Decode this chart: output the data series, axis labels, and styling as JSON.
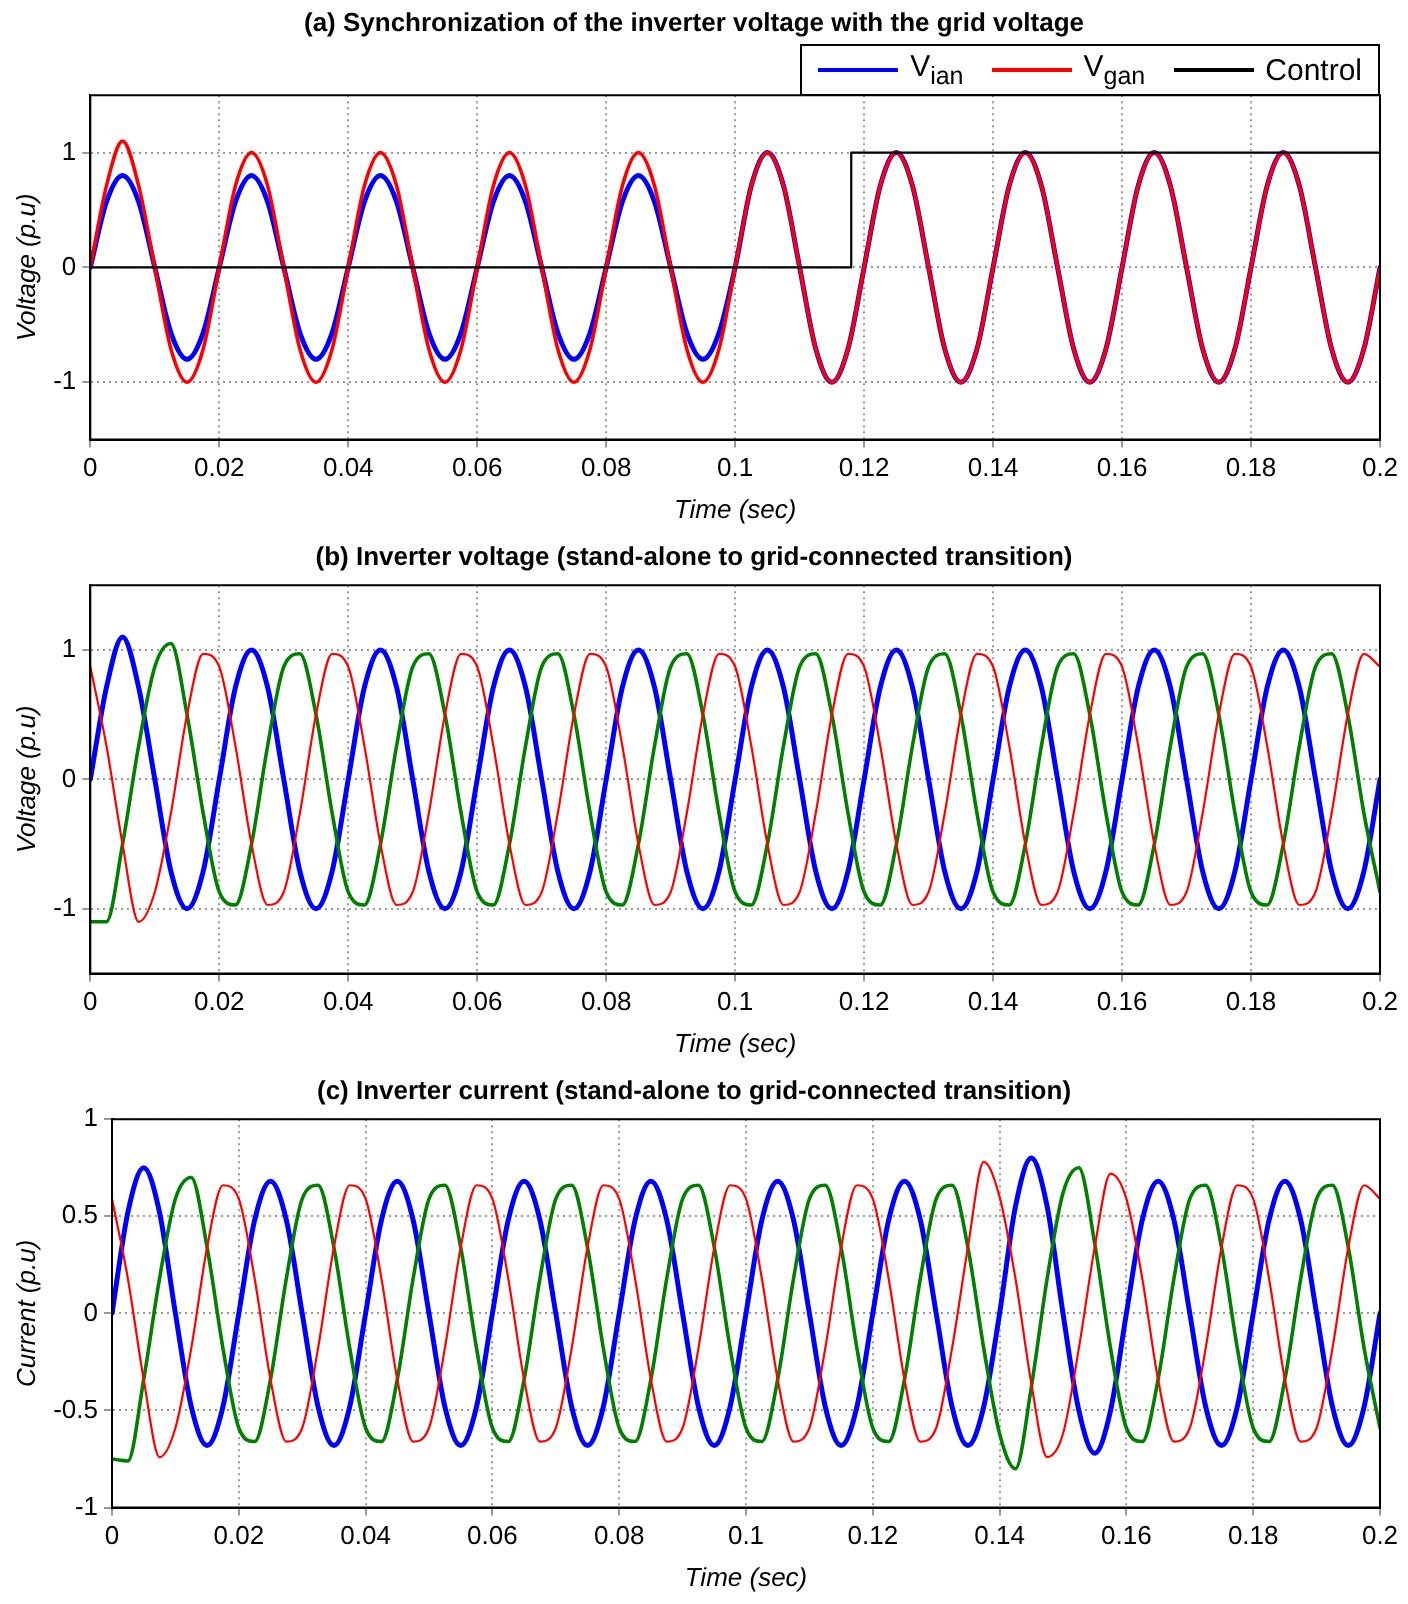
{
  "chart_data": [
    {
      "type": "line",
      "title": "(a) Synchronization of the inverter voltage with the grid voltage",
      "xlabel": "Time (sec)",
      "ylabel": "Voltage (p.u)",
      "xlim": [
        0,
        0.2
      ],
      "xticks": [
        0,
        0.02,
        0.04,
        0.06,
        0.08,
        0.1,
        0.12,
        0.14,
        0.16,
        0.18,
        0.2
      ],
      "ylim": [
        -1.5,
        1.5
      ],
      "yticks": [
        -1,
        0,
        1
      ],
      "grid": true,
      "legend": "top right",
      "x": [
        0,
        0.0025,
        0.005,
        0.0075,
        0.01,
        0.0125,
        0.015,
        0.0175,
        0.02,
        0.0225,
        0.025,
        0.0275,
        0.03,
        0.0325,
        0.035,
        0.0375,
        0.04,
        0.0425,
        0.045,
        0.0475,
        0.05,
        0.0525,
        0.055,
        0.0575,
        0.06,
        0.0625,
        0.065,
        0.0675,
        0.07,
        0.0725,
        0.075,
        0.0775,
        0.08,
        0.0825,
        0.085,
        0.0875,
        0.09,
        0.0925,
        0.095,
        0.0975,
        0.1,
        0.1025,
        0.105,
        0.1075,
        0.11,
        0.1125,
        0.115,
        0.1175,
        0.12,
        0.1225,
        0.125,
        0.1275,
        0.13,
        0.1325,
        0.135,
        0.1375,
        0.14,
        0.1425,
        0.145,
        0.1475,
        0.15,
        0.1525,
        0.155,
        0.1575,
        0.16,
        0.1625,
        0.165,
        0.1675,
        0.17,
        0.1725,
        0.175,
        0.1775,
        0.18,
        0.1825,
        0.185,
        0.1875,
        0.19,
        0.1925,
        0.195,
        0.1975,
        0.2
      ],
      "series": [
        {
          "name": "V$_{ian}$",
          "color": "#0000ff",
          "values": [
            0,
            0.57,
            0.8,
            0.57,
            0,
            -0.57,
            -0.8,
            -0.57,
            0,
            0.57,
            0.8,
            0.57,
            0,
            -0.57,
            -0.8,
            -0.57,
            0,
            0.57,
            0.8,
            0.57,
            0,
            -0.57,
            -0.8,
            -0.57,
            0,
            0.57,
            0.8,
            0.57,
            0,
            -0.57,
            -0.8,
            -0.57,
            0,
            0.57,
            0.8,
            0.57,
            0,
            -0.57,
            -0.8,
            -0.57,
            0,
            0.71,
            1,
            0.71,
            0,
            -0.71,
            -1,
            -0.71,
            0,
            0.71,
            1,
            0.71,
            0,
            -0.71,
            -1,
            -0.71,
            0,
            0.71,
            1,
            0.71,
            0,
            -0.71,
            -1,
            -0.71,
            0,
            0.71,
            1,
            0.71,
            0,
            -0.71,
            -1,
            -0.71,
            0,
            0.71,
            1,
            0.71,
            0,
            -0.71,
            -1,
            -0.71,
            0
          ]
        },
        {
          "name": "V$_{gan}$",
          "color": "#ff0000",
          "values": [
            0,
            0.71,
            1.1,
            0.71,
            0,
            -0.71,
            -1,
            -0.71,
            0,
            0.71,
            1,
            0.71,
            0,
            -0.71,
            -1,
            -0.71,
            0,
            0.71,
            1,
            0.71,
            0,
            -0.71,
            -1,
            -0.71,
            0,
            0.71,
            1,
            0.71,
            0,
            -0.71,
            -1,
            -0.71,
            0,
            0.71,
            1,
            0.71,
            0,
            -0.71,
            -1,
            -0.71,
            0,
            0.71,
            1,
            0.71,
            0,
            -0.71,
            -1,
            -0.71,
            0,
            0.71,
            1,
            0.71,
            0,
            -0.71,
            -1,
            -0.71,
            0,
            0.71,
            1,
            0.71,
            0,
            -0.71,
            -1,
            -0.71,
            0,
            0.71,
            1,
            0.71,
            0,
            -0.71,
            -1,
            -0.71,
            0,
            0.71,
            1,
            0.71,
            0,
            -0.71,
            -1,
            -0.71,
            0
          ]
        },
        {
          "name": "Control",
          "type": "step",
          "color": "#000000",
          "x": [
            0,
            0.118,
            0.2
          ],
          "values": [
            0,
            1,
            1
          ]
        }
      ]
    },
    {
      "type": "line",
      "title": "(b) Inverter voltage (stand-alone to grid-connected transition)",
      "xlabel": "Time (sec)",
      "ylabel": "Voltage (p.u)",
      "xlim": [
        0,
        0.2
      ],
      "xticks": [
        0,
        0.02,
        0.04,
        0.06,
        0.08,
        0.1,
        0.12,
        0.14,
        0.16,
        0.18,
        0.2
      ],
      "ylim": [
        -1.5,
        1.5
      ],
      "yticks": [
        -1,
        0,
        1
      ],
      "grid": true,
      "x": [
        0,
        0.0025,
        0.005,
        0.0075,
        0.01,
        0.0125,
        0.015,
        0.0175,
        0.02,
        0.0225,
        0.025,
        0.0275,
        0.03,
        0.0325,
        0.035,
        0.0375,
        0.04,
        0.0425,
        0.045,
        0.0475,
        0.05,
        0.0525,
        0.055,
        0.0575,
        0.06,
        0.0625,
        0.065,
        0.0675,
        0.07,
        0.0725,
        0.075,
        0.0775,
        0.08,
        0.0825,
        0.085,
        0.0875,
        0.09,
        0.0925,
        0.095,
        0.0975,
        0.1,
        0.1025,
        0.105,
        0.1075,
        0.11,
        0.1125,
        0.115,
        0.1175,
        0.12,
        0.1225,
        0.125,
        0.1275,
        0.13,
        0.1325,
        0.135,
        0.1375,
        0.14,
        0.1425,
        0.145,
        0.1475,
        0.15,
        0.1525,
        0.155,
        0.1575,
        0.16,
        0.1625,
        0.165,
        0.1675,
        0.17,
        0.1725,
        0.175,
        0.1775,
        0.18,
        0.1825,
        0.185,
        0.1875,
        0.19,
        0.1925,
        0.195,
        0.1975,
        0.2
      ],
      "series": [
        {
          "color": "#0000ff",
          "values": [
            0,
            0.71,
            1.1,
            0.71,
            0,
            -0.71,
            -1,
            -0.71,
            0,
            0.71,
            1,
            0.71,
            0,
            -0.71,
            -1,
            -0.71,
            0,
            0.71,
            1,
            0.71,
            0,
            -0.71,
            -1,
            -0.71,
            0,
            0.71,
            1,
            0.71,
            0,
            -0.71,
            -1,
            -0.71,
            0,
            0.71,
            1,
            0.71,
            0,
            -0.71,
            -1,
            -0.71,
            0,
            0.71,
            1,
            0.71,
            0,
            -0.71,
            -1,
            -0.71,
            0,
            0.71,
            1,
            0.71,
            0,
            -0.71,
            -1,
            -0.71,
            0,
            0.71,
            1,
            0.71,
            0,
            -0.71,
            -1,
            -0.71,
            0,
            0.71,
            1,
            0.71,
            0,
            -0.71,
            -1,
            -0.71,
            0,
            0.71,
            1,
            0.71,
            0,
            -0.71,
            -1,
            -0.71,
            0
          ]
        },
        {
          "color": "#008000",
          "values": [
            -1.1,
            -1.1,
            -0.5,
            0.26,
            0.87,
            1.05,
            0.5,
            -0.26,
            -0.87,
            -0.97,
            -0.5,
            0.26,
            0.87,
            0.97,
            0.5,
            -0.26,
            -0.87,
            -0.97,
            -0.5,
            0.26,
            0.87,
            0.97,
            0.5,
            -0.26,
            -0.87,
            -0.97,
            -0.5,
            0.26,
            0.87,
            0.97,
            0.5,
            -0.26,
            -0.87,
            -0.97,
            -0.5,
            0.26,
            0.87,
            0.97,
            0.5,
            -0.26,
            -0.87,
            -0.97,
            -0.5,
            0.26,
            0.87,
            0.97,
            0.5,
            -0.26,
            -0.87,
            -0.97,
            -0.5,
            0.26,
            0.87,
            0.97,
            0.5,
            -0.26,
            -0.87,
            -0.97,
            -0.5,
            0.26,
            0.87,
            0.97,
            0.5,
            -0.26,
            -0.87,
            -0.97,
            -0.5,
            0.26,
            0.87,
            0.97,
            0.5,
            -0.26,
            -0.87,
            -0.97,
            -0.5,
            0.26,
            0.87,
            0.97,
            0.5,
            -0.26,
            -0.87
          ]
        },
        {
          "color": "#ff0000",
          "values": [
            0.87,
            0.26,
            -0.5,
            -1.1,
            -0.87,
            -0.26,
            0.5,
            0.97,
            0.87,
            0.26,
            -0.5,
            -0.97,
            -0.87,
            -0.26,
            0.5,
            0.97,
            0.87,
            0.26,
            -0.5,
            -0.97,
            -0.87,
            -0.26,
            0.5,
            0.97,
            0.87,
            0.26,
            -0.5,
            -0.97,
            -0.87,
            -0.26,
            0.5,
            0.97,
            0.87,
            0.26,
            -0.5,
            -0.97,
            -0.87,
            -0.26,
            0.5,
            0.97,
            0.87,
            0.26,
            -0.5,
            -0.97,
            -0.87,
            -0.26,
            0.5,
            0.97,
            0.87,
            0.26,
            -0.5,
            -0.97,
            -0.87,
            -0.26,
            0.5,
            0.97,
            0.87,
            0.26,
            -0.5,
            -0.97,
            -0.87,
            -0.26,
            0.5,
            0.97,
            0.87,
            0.26,
            -0.5,
            -0.97,
            -0.87,
            -0.26,
            0.5,
            0.97,
            0.87,
            0.26,
            -0.5,
            -0.97,
            -0.87,
            -0.26,
            0.5,
            0.97,
            0.87
          ]
        }
      ]
    },
    {
      "type": "line",
      "title": "(c) Inverter current (stand-alone to grid-connected transition)",
      "xlabel": "Time (sec)",
      "ylabel": "Current (p.u)",
      "xlim": [
        0,
        0.2
      ],
      "xticks": [
        0,
        0.02,
        0.04,
        0.06,
        0.08,
        0.1,
        0.12,
        0.14,
        0.16,
        0.18,
        0.2
      ],
      "ylim": [
        -1,
        1
      ],
      "yticks": [
        -1,
        -0.5,
        0,
        0.5,
        1
      ],
      "grid": true,
      "x": [
        0,
        0.0025,
        0.005,
        0.0075,
        0.01,
        0.0125,
        0.015,
        0.0175,
        0.02,
        0.0225,
        0.025,
        0.0275,
        0.03,
        0.0325,
        0.035,
        0.0375,
        0.04,
        0.0425,
        0.045,
        0.0475,
        0.05,
        0.0525,
        0.055,
        0.0575,
        0.06,
        0.0625,
        0.065,
        0.0675,
        0.07,
        0.0725,
        0.075,
        0.0775,
        0.08,
        0.0825,
        0.085,
        0.0875,
        0.09,
        0.0925,
        0.095,
        0.0975,
        0.1,
        0.1025,
        0.105,
        0.1075,
        0.11,
        0.1125,
        0.115,
        0.1175,
        0.12,
        0.1225,
        0.125,
        0.1275,
        0.13,
        0.1325,
        0.135,
        0.1375,
        0.14,
        0.1425,
        0.145,
        0.1475,
        0.15,
        0.1525,
        0.155,
        0.1575,
        0.16,
        0.1625,
        0.165,
        0.1675,
        0.17,
        0.1725,
        0.175,
        0.1775,
        0.18,
        0.1825,
        0.185,
        0.1875,
        0.19,
        0.1925,
        0.195,
        0.1975,
        0.2
      ],
      "series": [
        {
          "color": "#0000ff",
          "values": [
            0,
            0.52,
            0.75,
            0.52,
            0,
            -0.48,
            -0.68,
            -0.48,
            0,
            0.48,
            0.68,
            0.48,
            0,
            -0.48,
            -0.68,
            -0.48,
            0,
            0.48,
            0.68,
            0.48,
            0,
            -0.48,
            -0.68,
            -0.48,
            0,
            0.48,
            0.68,
            0.48,
            0,
            -0.48,
            -0.68,
            -0.48,
            0,
            0.48,
            0.68,
            0.48,
            0,
            -0.48,
            -0.68,
            -0.48,
            0,
            0.48,
            0.68,
            0.48,
            0,
            -0.48,
            -0.68,
            -0.48,
            0,
            0.48,
            0.68,
            0.48,
            0,
            -0.48,
            -0.68,
            -0.48,
            0,
            0.55,
            0.8,
            0.55,
            0,
            -0.5,
            -0.72,
            -0.5,
            0,
            0.48,
            0.68,
            0.48,
            0,
            -0.48,
            -0.68,
            -0.48,
            0,
            0.48,
            0.68,
            0.48,
            0,
            -0.48,
            -0.68,
            -0.48,
            0
          ]
        },
        {
          "color": "#008000",
          "values": [
            -0.75,
            -0.76,
            -0.34,
            0.18,
            0.59,
            0.7,
            0.34,
            -0.18,
            -0.59,
            -0.66,
            -0.34,
            0.18,
            0.59,
            0.66,
            0.34,
            -0.18,
            -0.59,
            -0.66,
            -0.34,
            0.18,
            0.59,
            0.66,
            0.34,
            -0.18,
            -0.59,
            -0.66,
            -0.34,
            0.18,
            0.59,
            0.66,
            0.34,
            -0.18,
            -0.59,
            -0.66,
            -0.34,
            0.18,
            0.59,
            0.66,
            0.34,
            -0.18,
            -0.59,
            -0.66,
            -0.34,
            0.18,
            0.59,
            0.66,
            0.34,
            -0.18,
            -0.59,
            -0.66,
            -0.34,
            0.18,
            0.59,
            0.66,
            0.34,
            -0.18,
            -0.62,
            -0.8,
            -0.38,
            0.18,
            0.62,
            0.75,
            0.36,
            -0.18,
            -0.59,
            -0.66,
            -0.34,
            0.18,
            0.59,
            0.66,
            0.34,
            -0.18,
            -0.59,
            -0.66,
            -0.34,
            0.18,
            0.59,
            0.66,
            0.34,
            -0.18,
            -0.59
          ]
        },
        {
          "color": "#ff0000",
          "values": [
            0.59,
            0.18,
            -0.34,
            -0.74,
            -0.59,
            -0.18,
            0.34,
            0.66,
            0.59,
            0.18,
            -0.34,
            -0.66,
            -0.59,
            -0.18,
            0.34,
            0.66,
            0.59,
            0.18,
            -0.34,
            -0.66,
            -0.59,
            -0.18,
            0.34,
            0.66,
            0.59,
            0.18,
            -0.34,
            -0.66,
            -0.59,
            -0.18,
            0.34,
            0.66,
            0.59,
            0.18,
            -0.34,
            -0.66,
            -0.59,
            -0.18,
            0.34,
            0.66,
            0.59,
            0.18,
            -0.34,
            -0.66,
            -0.59,
            -0.18,
            0.34,
            0.66,
            0.59,
            0.18,
            -0.34,
            -0.66,
            -0.59,
            -0.18,
            0.34,
            0.78,
            0.6,
            0.18,
            -0.36,
            -0.74,
            -0.62,
            -0.18,
            0.34,
            0.72,
            0.59,
            0.18,
            -0.34,
            -0.66,
            -0.59,
            -0.18,
            0.34,
            0.66,
            0.59,
            0.18,
            -0.34,
            -0.66,
            -0.59,
            -0.18,
            0.34,
            0.66,
            0.59
          ]
        }
      ]
    }
  ]
}
